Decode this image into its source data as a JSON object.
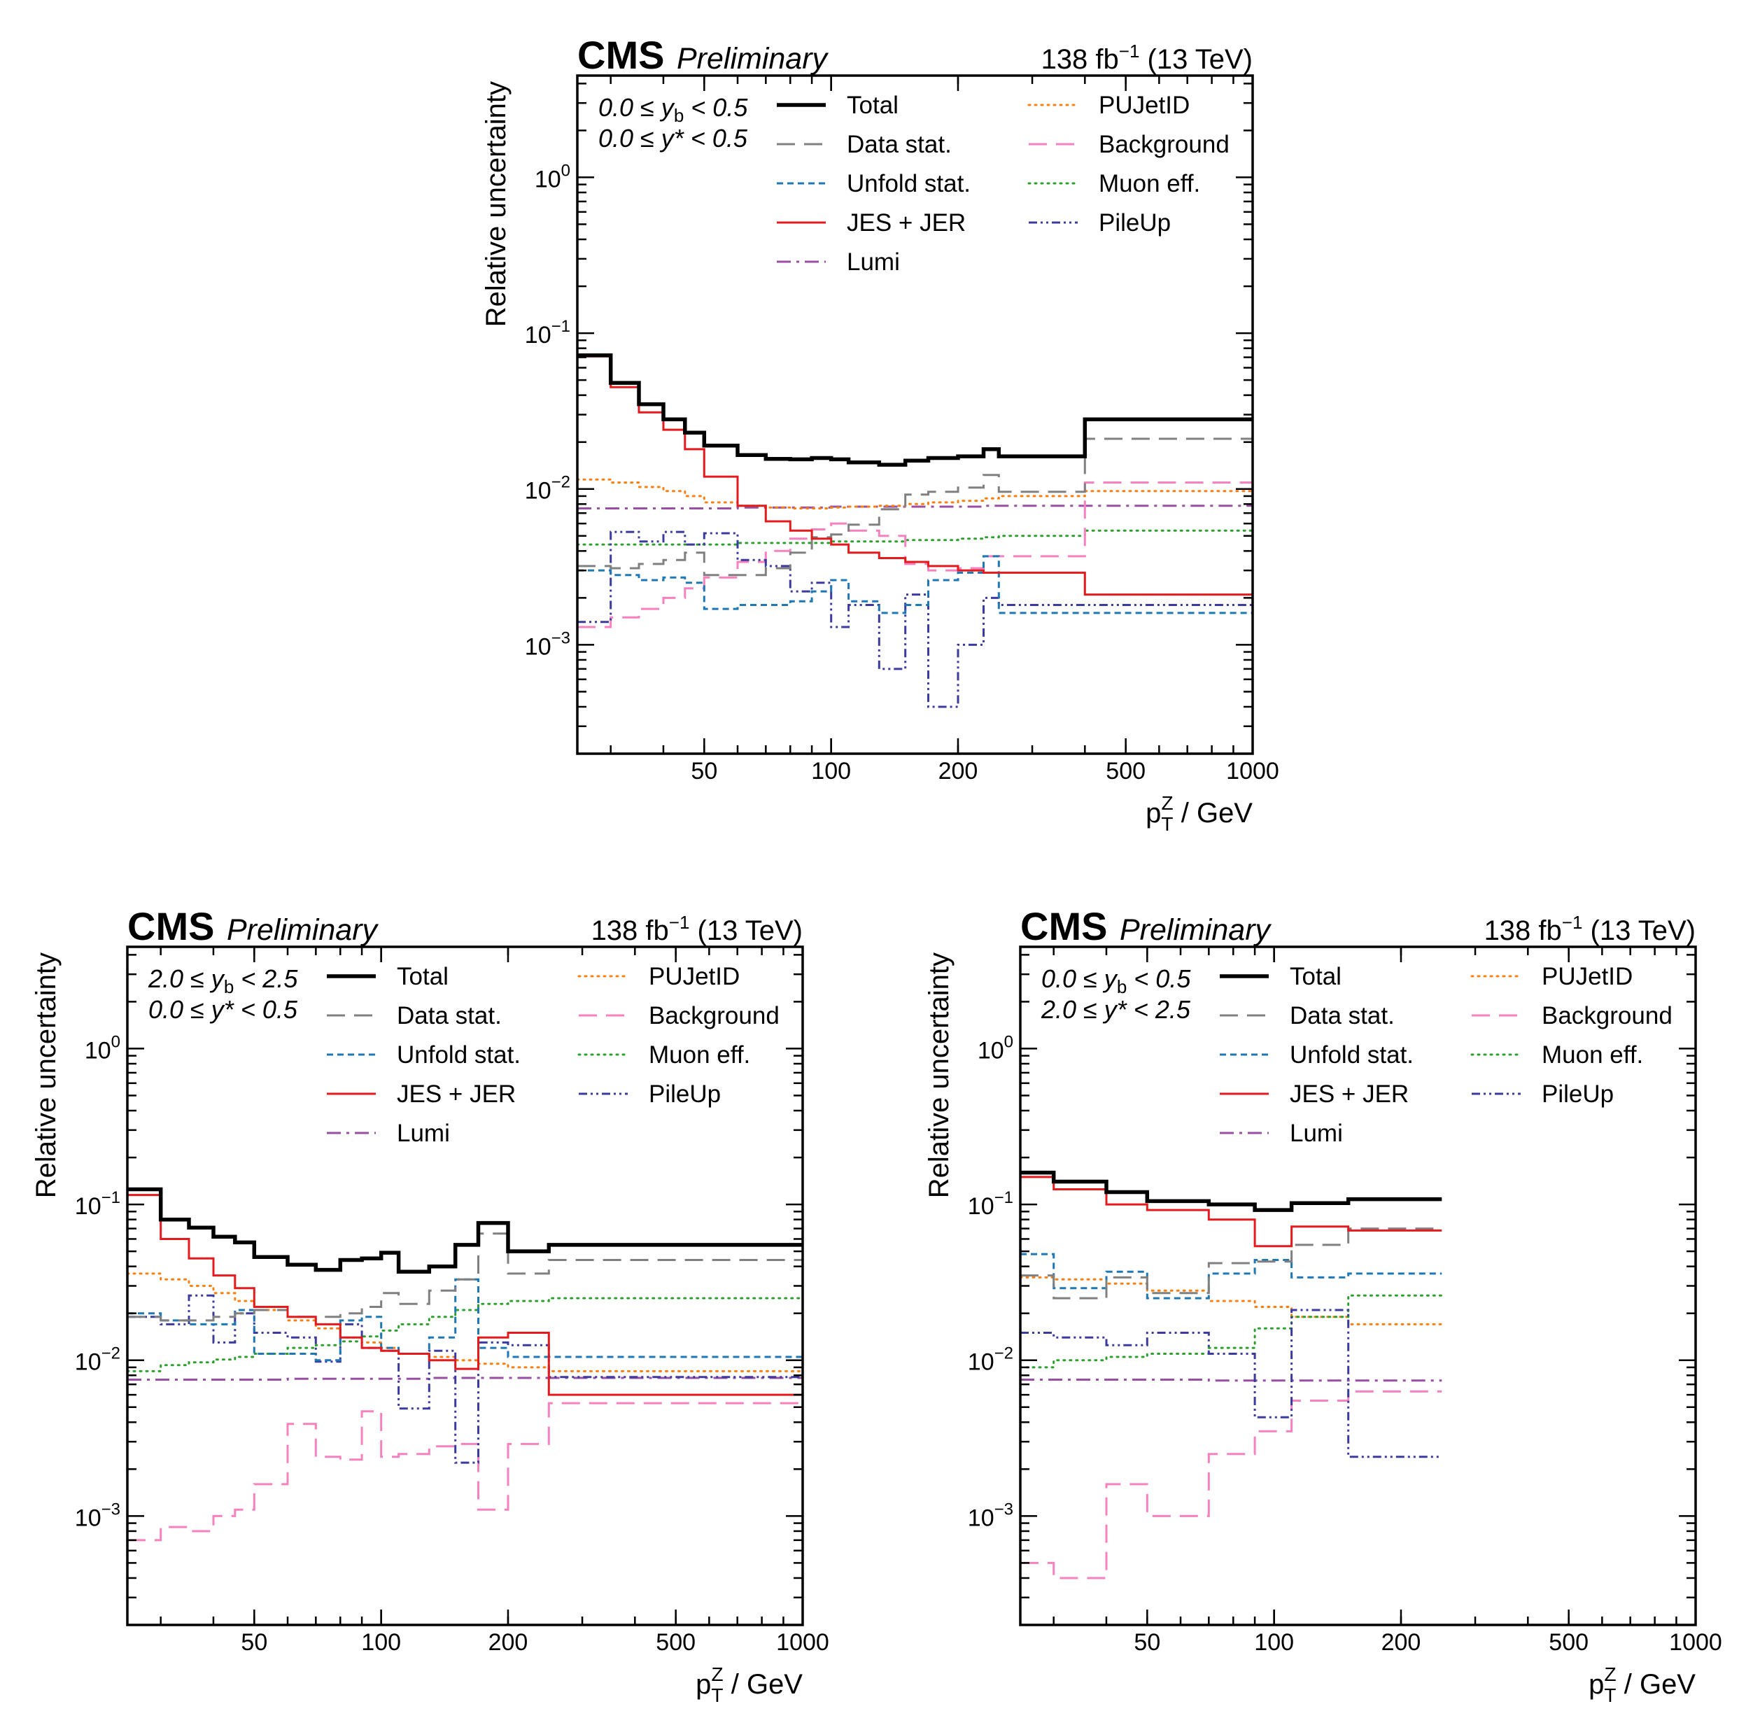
{
  "figure": {
    "background": "#ffffff"
  },
  "common": {
    "experiment": "CMS",
    "status": "Preliminary",
    "lumi_value": "138 fb",
    "lumi_exponent": "−1",
    "lumi_energy": "(13 TeV)",
    "ylabel": "Relative uncertainty",
    "xlabel_p": "p",
    "xlabel_sub": "T",
    "xlabel_sup": "Z",
    "xlabel_unit": "/ GeV",
    "x_range": [
      25,
      1000
    ],
    "y_range": [
      0.0002,
      4.5
    ],
    "x_tick_labels": [
      "50",
      "100",
      "200",
      "500",
      "1000"
    ],
    "x_tick_values": [
      50,
      100,
      200,
      500,
      1000
    ],
    "y_tick_labels": [
      {
        "base": "10",
        "exp": "0",
        "value": 1
      },
      {
        "base": "10",
        "exp": "−1",
        "value": 0.1
      },
      {
        "base": "10",
        "exp": "−2",
        "value": 0.01
      },
      {
        "base": "10",
        "exp": "−3",
        "value": 0.001
      }
    ],
    "legend": [
      {
        "label": "Total",
        "color": "#000000",
        "style": "solid"
      },
      {
        "label": "Data stat.",
        "color": "#808080",
        "style": "dashed"
      },
      {
        "label": "Unfold stat.",
        "color": "#1f77b4",
        "style": "dashed-small"
      },
      {
        "label": "JES + JER",
        "color": "#e41a1c",
        "style": "solid"
      },
      {
        "label": "Lumi",
        "color": "#984ea3",
        "style": "dashdot"
      },
      {
        "label": "PUJetID",
        "color": "#ff7f0e",
        "style": "dotted"
      },
      {
        "label": "Background",
        "color": "#f781bf",
        "style": "dashed"
      },
      {
        "label": "Muon eff.",
        "color": "#2ca02c",
        "style": "dotted"
      },
      {
        "label": "PileUp",
        "color": "#3b3b9f",
        "style": "dashdotdot"
      }
    ]
  },
  "chart_data": [
    {
      "type": "line",
      "title": "",
      "xlabel": "p_T^Z / GeV",
      "ylabel": "Relative uncertainty",
      "xscale": "log",
      "yscale": "log",
      "xlim": [
        25,
        1000
      ],
      "ylim": [
        0.0002,
        4.5
      ],
      "annotation": [
        {
          "prefix": "0.0 ≤ ",
          "var": "y",
          "sub": "b",
          "suffix": " < 0.5"
        },
        {
          "prefix": "0.0 ≤ ",
          "var": "y*",
          "sub": "",
          "suffix": " < 0.5"
        }
      ],
      "bin_edges": [
        25,
        30,
        35,
        40,
        45,
        50,
        60,
        70,
        80,
        90,
        100,
        110,
        130,
        150,
        170,
        200,
        230,
        250,
        400,
        1000
      ],
      "series": [
        {
          "name": "Total",
          "values": [
            0.072,
            0.048,
            0.035,
            0.028,
            0.023,
            0.019,
            0.0165,
            0.0156,
            0.0155,
            0.0158,
            0.0155,
            0.0148,
            0.0143,
            0.0152,
            0.0158,
            0.0162,
            0.018,
            0.0162,
            0.028
          ]
        },
        {
          "name": "Data stat.",
          "values": [
            0.0032,
            0.0031,
            0.0033,
            0.0035,
            0.0039,
            0.0028,
            0.0028,
            0.0031,
            0.0039,
            0.0049,
            0.0051,
            0.0059,
            0.0074,
            0.0092,
            0.0096,
            0.0102,
            0.0123,
            0.0096,
            0.021
          ]
        },
        {
          "name": "Unfold stat.",
          "values": [
            0.003,
            0.0028,
            0.0026,
            0.0027,
            0.0025,
            0.0017,
            0.0018,
            0.0018,
            0.0019,
            0.0022,
            0.0026,
            0.0019,
            0.0016,
            0.0018,
            0.0026,
            0.0029,
            0.0037,
            0.0016,
            0.0016
          ]
        },
        {
          "name": "JES + JER",
          "values": [
            0.071,
            0.045,
            0.031,
            0.024,
            0.018,
            0.012,
            0.0078,
            0.0062,
            0.0054,
            0.0048,
            0.0044,
            0.0039,
            0.0036,
            0.0034,
            0.0032,
            0.003,
            0.0029,
            0.0029,
            0.0021
          ]
        },
        {
          "name": "Lumi",
          "values": [
            0.0075,
            0.0075,
            0.0075,
            0.0075,
            0.0075,
            0.0075,
            0.0076,
            0.0076,
            0.0076,
            0.0076,
            0.0077,
            0.0077,
            0.0077,
            0.0077,
            0.0077,
            0.0077,
            0.0078,
            0.0078,
            0.0078
          ]
        },
        {
          "name": "PUJetID",
          "values": [
            0.0115,
            0.011,
            0.0103,
            0.0097,
            0.009,
            0.0082,
            0.0078,
            0.0076,
            0.0075,
            0.0075,
            0.0076,
            0.0077,
            0.0078,
            0.008,
            0.0082,
            0.0084,
            0.0087,
            0.009,
            0.0097
          ]
        },
        {
          "name": "Background",
          "values": [
            0.0013,
            0.0015,
            0.0017,
            0.002,
            0.0023,
            0.0027,
            0.0034,
            0.004,
            0.0048,
            0.0055,
            0.006,
            0.0054,
            0.005,
            0.0033,
            0.003,
            0.0031,
            0.0037,
            0.0037,
            0.011
          ]
        },
        {
          "name": "Muon eff.",
          "values": [
            0.0044,
            0.0044,
            0.0044,
            0.0044,
            0.0044,
            0.0044,
            0.0045,
            0.0045,
            0.0045,
            0.0045,
            0.0046,
            0.0046,
            0.0046,
            0.0047,
            0.0047,
            0.0048,
            0.0049,
            0.005,
            0.0054
          ]
        },
        {
          "name": "PileUp",
          "values": [
            0.0014,
            0.0053,
            0.0046,
            0.0053,
            0.0044,
            0.0052,
            0.0035,
            0.0032,
            0.0022,
            0.0025,
            0.0013,
            0.0018,
            0.0007,
            0.0021,
            0.0004,
            0.001,
            0.002,
            0.0018,
            0.0018
          ]
        }
      ]
    },
    {
      "type": "line",
      "title": "",
      "xlabel": "p_T^Z / GeV",
      "ylabel": "Relative uncertainty",
      "xscale": "log",
      "yscale": "log",
      "xlim": [
        25,
        1000
      ],
      "ylim": [
        0.0002,
        4.5
      ],
      "annotation": [
        {
          "prefix": "2.0 ≤ ",
          "var": "y",
          "sub": "b",
          "suffix": " < 2.5"
        },
        {
          "prefix": "0.0 ≤ ",
          "var": "y*",
          "sub": "",
          "suffix": " < 0.5"
        }
      ],
      "bin_edges": [
        25,
        30,
        35,
        40,
        45,
        50,
        60,
        70,
        80,
        90,
        100,
        110,
        130,
        150,
        170,
        200,
        250,
        1000
      ],
      "series": [
        {
          "name": "Total",
          "values": [
            0.125,
            0.08,
            0.071,
            0.062,
            0.057,
            0.046,
            0.041,
            0.038,
            0.044,
            0.045,
            0.049,
            0.037,
            0.04,
            0.055,
            0.076,
            0.05,
            0.055
          ]
        },
        {
          "name": "Data stat.",
          "values": [
            0.019,
            0.018,
            0.018,
            0.019,
            0.02,
            0.021,
            0.019,
            0.019,
            0.02,
            0.022,
            0.027,
            0.023,
            0.028,
            0.033,
            0.065,
            0.036,
            0.044
          ]
        },
        {
          "name": "Unfold stat.",
          "values": [
            0.02,
            0.018,
            0.017,
            0.017,
            0.021,
            0.011,
            0.011,
            0.01,
            0.018,
            0.019,
            0.012,
            0.011,
            0.014,
            0.033,
            0.012,
            0.0105,
            0.0105
          ]
        },
        {
          "name": "JES + JER",
          "values": [
            0.115,
            0.06,
            0.045,
            0.035,
            0.029,
            0.022,
            0.019,
            0.017,
            0.014,
            0.012,
            0.0115,
            0.011,
            0.01,
            0.0088,
            0.014,
            0.015,
            0.006
          ]
        },
        {
          "name": "Lumi",
          "values": [
            0.0075,
            0.0075,
            0.0075,
            0.0075,
            0.0075,
            0.0075,
            0.0076,
            0.0076,
            0.0076,
            0.0076,
            0.0076,
            0.0076,
            0.0077,
            0.0077,
            0.0077,
            0.0077,
            0.0077
          ]
        },
        {
          "name": "PUJetID",
          "values": [
            0.036,
            0.033,
            0.03,
            0.027,
            0.024,
            0.021,
            0.018,
            0.016,
            0.014,
            0.013,
            0.012,
            0.011,
            0.0105,
            0.01,
            0.0095,
            0.009,
            0.0085
          ]
        },
        {
          "name": "Background",
          "values": [
            0.0007,
            0.00085,
            0.0008,
            0.001,
            0.0011,
            0.0016,
            0.0039,
            0.0024,
            0.0023,
            0.0047,
            0.0024,
            0.0025,
            0.0028,
            0.0029,
            0.0011,
            0.0029,
            0.0053
          ]
        },
        {
          "name": "Muon eff.",
          "values": [
            0.0085,
            0.0093,
            0.0097,
            0.0101,
            0.0105,
            0.011,
            0.012,
            0.0125,
            0.0132,
            0.0142,
            0.0155,
            0.017,
            0.019,
            0.021,
            0.023,
            0.024,
            0.025
          ]
        },
        {
          "name": "PileUp",
          "values": [
            0.019,
            0.017,
            0.026,
            0.013,
            0.02,
            0.015,
            0.014,
            0.0098,
            0.017,
            0.012,
            0.0115,
            0.0049,
            0.0115,
            0.0022,
            0.013,
            0.0125,
            0.0078
          ]
        }
      ]
    },
    {
      "type": "line",
      "title": "",
      "xlabel": "p_T^Z / GeV",
      "ylabel": "Relative uncertainty",
      "xscale": "log",
      "yscale": "log",
      "xlim": [
        25,
        1000
      ],
      "ylim": [
        0.0002,
        4.5
      ],
      "annotation": [
        {
          "prefix": "0.0 ≤ ",
          "var": "y",
          "sub": "b",
          "suffix": " < 0.5"
        },
        {
          "prefix": "2.0 ≤ ",
          "var": "y*",
          "sub": "",
          "suffix": " < 2.5"
        }
      ],
      "bin_edges": [
        25,
        30,
        40,
        50,
        70,
        90,
        110,
        150,
        250
      ],
      "series": [
        {
          "name": "Total",
          "values": [
            0.16,
            0.14,
            0.12,
            0.105,
            0.1,
            0.092,
            0.102,
            0.108
          ]
        },
        {
          "name": "Data stat.",
          "values": [
            0.035,
            0.025,
            0.034,
            0.027,
            0.042,
            0.043,
            0.055,
            0.07
          ]
        },
        {
          "name": "Unfold stat.",
          "values": [
            0.048,
            0.029,
            0.037,
            0.025,
            0.036,
            0.044,
            0.034,
            0.036
          ]
        },
        {
          "name": "JES + JER",
          "values": [
            0.15,
            0.125,
            0.1,
            0.092,
            0.08,
            0.054,
            0.072,
            0.068
          ]
        },
        {
          "name": "Lumi",
          "values": [
            0.0075,
            0.0075,
            0.0075,
            0.0075,
            0.0074,
            0.0074,
            0.0074,
            0.0074
          ]
        },
        {
          "name": "PUJetID",
          "values": [
            0.034,
            0.033,
            0.031,
            0.028,
            0.024,
            0.022,
            0.019,
            0.017
          ]
        },
        {
          "name": "Background",
          "values": [
            0.0005,
            0.0004,
            0.0016,
            0.001,
            0.0025,
            0.0035,
            0.0055,
            0.0063
          ]
        },
        {
          "name": "Muon eff.",
          "values": [
            0.009,
            0.01,
            0.0105,
            0.011,
            0.012,
            0.016,
            0.019,
            0.026
          ]
        },
        {
          "name": "PileUp",
          "values": [
            0.015,
            0.014,
            0.0125,
            0.015,
            0.011,
            0.0043,
            0.021,
            0.0024
          ]
        }
      ]
    }
  ]
}
